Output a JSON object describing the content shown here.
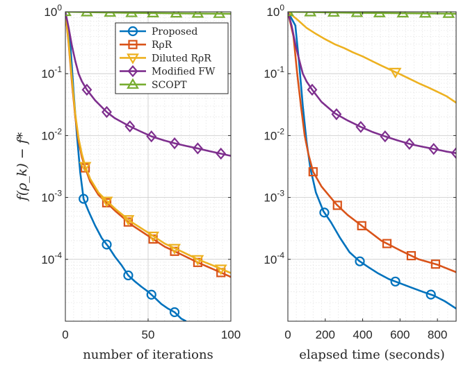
{
  "chart_data": [
    {
      "type": "line",
      "xlabel": "number of iterations",
      "ylabel": "f(ρ_k) − f*",
      "xlim": [
        0,
        100
      ],
      "ylim": [
        1e-05,
        1
      ],
      "yscale": "log",
      "xticks": [
        "0",
        "50",
        "100"
      ],
      "yticks": [
        {
          "base": "10",
          "exp": "0",
          "value": 1
        },
        {
          "base": "10",
          "exp": "-1",
          "value": 0.1
        },
        {
          "base": "10",
          "exp": "-2",
          "value": 0.01
        },
        {
          "base": "10",
          "exp": "-3",
          "value": 0.001
        },
        {
          "base": "10",
          "exp": "-4",
          "value": 0.0001
        }
      ],
      "grid": true,
      "legend_position": "top-right",
      "series": [
        {
          "name": "Proposed",
          "color": "#0072BD",
          "marker": "circle",
          "x": [
            0,
            3,
            5,
            7,
            9,
            11,
            14,
            18,
            22,
            26,
            30,
            34,
            38,
            42,
            46,
            50,
            54,
            58,
            62,
            66,
            70,
            73
          ],
          "y": [
            1,
            0.3,
            0.05,
            0.01,
            0.0025,
            0.00095,
            0.0006,
            0.00035,
            0.00022,
            0.00016,
            0.00011,
            8e-05,
            5.5e-05,
            4.4e-05,
            3.6e-05,
            3e-05,
            2.4e-05,
            1.9e-05,
            1.6e-05,
            1.4e-05,
            1.1e-05,
            1e-05
          ],
          "marker_x": [
            11,
            25,
            38,
            52,
            66
          ]
        },
        {
          "name": "RρR",
          "color": "#D95319",
          "marker": "square",
          "x": [
            0,
            2,
            4,
            6,
            8,
            10,
            12,
            15,
            20,
            25,
            30,
            40,
            50,
            60,
            70,
            80,
            90,
            100
          ],
          "y": [
            1,
            0.3,
            0.07,
            0.02,
            0.008,
            0.0045,
            0.003,
            0.0018,
            0.0011,
            0.00082,
            0.00061,
            0.00036,
            0.00024,
            0.00016,
            0.00012,
            8.9e-05,
            6.8e-05,
            5.2e-05
          ],
          "marker_x": [
            12,
            25,
            38,
            53,
            66,
            80,
            94
          ]
        },
        {
          "name": "Diluted RρR",
          "color": "#EDB120",
          "marker": "triangle-down",
          "x": [
            0,
            2,
            4,
            6,
            8,
            10,
            12,
            15,
            20,
            25,
            30,
            40,
            50,
            60,
            70,
            80,
            90,
            100
          ],
          "y": [
            1,
            0.32,
            0.08,
            0.022,
            0.009,
            0.005,
            0.0032,
            0.002,
            0.0012,
            0.00088,
            0.00066,
            0.0004,
            0.00027,
            0.00018,
            0.000135,
            0.0001,
            7.8e-05,
            6e-05
          ],
          "marker_x": [
            12,
            25,
            38,
            53,
            66,
            80,
            94
          ]
        },
        {
          "name": "Modified FW",
          "color": "#7E2F8E",
          "marker": "diamond",
          "x": [
            0,
            2,
            4,
            6,
            8,
            10,
            13,
            18,
            25,
            30,
            38,
            45,
            52,
            60,
            66,
            73,
            80,
            87,
            94,
            100
          ],
          "y": [
            1,
            0.55,
            0.28,
            0.16,
            0.1,
            0.075,
            0.055,
            0.037,
            0.024,
            0.019,
            0.0145,
            0.0118,
            0.0097,
            0.0083,
            0.0075,
            0.0068,
            0.0062,
            0.0056,
            0.0051,
            0.0047
          ],
          "marker_x": [
            13,
            25,
            39,
            52,
            66,
            80,
            94
          ]
        },
        {
          "name": "SCOPT",
          "color": "#77AC30",
          "marker": "triangle-up",
          "x": [
            0,
            20,
            40,
            60,
            80,
            100
          ],
          "y": [
            1,
            0.98,
            0.96,
            0.95,
            0.94,
            0.93
          ],
          "marker_x": [
            0,
            13,
            27,
            40,
            53,
            67,
            80,
            93
          ]
        }
      ]
    },
    {
      "type": "line",
      "xlabel": "elapsed time (seconds)",
      "xlim": [
        0,
        900
      ],
      "ylim": [
        1e-05,
        1
      ],
      "yscale": "log",
      "xticks": [
        "0",
        "200",
        "400",
        "600",
        "800"
      ],
      "yticks": [
        {
          "base": "10",
          "exp": "0",
          "value": 1
        },
        {
          "base": "10",
          "exp": "-1",
          "value": 0.1
        },
        {
          "base": "10",
          "exp": "-2",
          "value": 0.01
        },
        {
          "base": "10",
          "exp": "-3",
          "value": 0.001
        },
        {
          "base": "10",
          "exp": "-4",
          "value": 0.0001
        }
      ],
      "grid": true,
      "series": [
        {
          "name": "Proposed",
          "color": "#0072BD",
          "marker": "circle",
          "x": [
            0,
            40,
            60,
            80,
            100,
            120,
            150,
            190,
            230,
            280,
            330,
            380,
            430,
            480,
            540,
            600,
            660,
            720,
            780,
            840,
            900
          ],
          "y": [
            1,
            0.6,
            0.15,
            0.03,
            0.008,
            0.003,
            0.0012,
            0.0006,
            0.0004,
            0.00022,
            0.00013,
            9.5e-05,
            7.5e-05,
            6e-05,
            4.8e-05,
            4.1e-05,
            3.5e-05,
            3e-05,
            2.6e-05,
            2.1e-05,
            1.6e-05
          ],
          "marker_x": [
            195,
            385,
            575,
            765
          ]
        },
        {
          "name": "RρR",
          "color": "#D95319",
          "marker": "square",
          "x": [
            0,
            30,
            50,
            70,
            90,
            110,
            135,
            180,
            260,
            320,
            400,
            500,
            600,
            700,
            800,
            900
          ],
          "y": [
            1,
            0.4,
            0.1,
            0.03,
            0.01,
            0.005,
            0.0026,
            0.0015,
            0.00077,
            0.00052,
            0.00034,
            0.0002,
            0.00014,
            0.0001,
            8.2e-05,
            6.2e-05
          ],
          "marker_x": [
            135,
            265,
            395,
            530,
            660,
            790
          ]
        },
        {
          "name": "Diluted RρR",
          "color": "#EDB120",
          "marker": "triangle-down",
          "x": [
            0,
            50,
            100,
            150,
            200,
            250,
            300,
            350,
            400,
            450,
            500,
            550,
            600,
            650,
            700,
            750,
            800,
            850,
            900
          ],
          "y": [
            1,
            0.75,
            0.55,
            0.44,
            0.36,
            0.3,
            0.26,
            0.22,
            0.19,
            0.16,
            0.135,
            0.115,
            0.098,
            0.083,
            0.07,
            0.06,
            0.051,
            0.043,
            0.034
          ],
          "marker_x": [
            575
          ]
        },
        {
          "name": "Modified FW",
          "color": "#7E2F8E",
          "marker": "diamond",
          "x": [
            0,
            20,
            40,
            60,
            80,
            100,
            130,
            180,
            250,
            320,
            390,
            450,
            520,
            590,
            660,
            720,
            790,
            850,
            900
          ],
          "y": [
            1,
            0.6,
            0.3,
            0.17,
            0.1,
            0.075,
            0.055,
            0.035,
            0.023,
            0.0175,
            0.0138,
            0.0115,
            0.0097,
            0.0083,
            0.0072,
            0.0066,
            0.006,
            0.0055,
            0.0052
          ],
          "marker_x": [
            130,
            260,
            390,
            520,
            650,
            780,
            900
          ]
        },
        {
          "name": "SCOPT",
          "color": "#77AC30",
          "marker": "triangle-up",
          "x": [
            0,
            200,
            400,
            600,
            800,
            900
          ],
          "y": [
            1,
            0.98,
            0.96,
            0.95,
            0.94,
            0.93
          ],
          "marker_x": [
            0,
            120,
            245,
            370,
            490,
            615,
            735,
            860
          ]
        }
      ]
    }
  ]
}
